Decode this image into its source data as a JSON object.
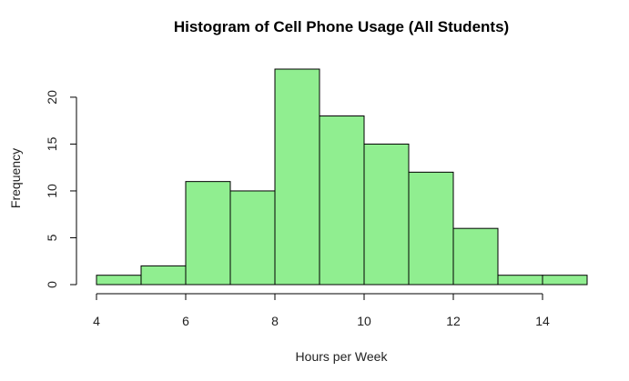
{
  "chart_data": {
    "type": "bar",
    "title": "Histogram of Cell Phone Usage (All Students)",
    "xlabel": "Hours per Week",
    "ylabel": "Frequency",
    "bins": [
      {
        "start": 4,
        "end": 5,
        "count": 1
      },
      {
        "start": 5,
        "end": 6,
        "count": 2
      },
      {
        "start": 6,
        "end": 7,
        "count": 11
      },
      {
        "start": 7,
        "end": 8,
        "count": 10
      },
      {
        "start": 8,
        "end": 9,
        "count": 23
      },
      {
        "start": 9,
        "end": 10,
        "count": 18
      },
      {
        "start": 10,
        "end": 11,
        "count": 15
      },
      {
        "start": 11,
        "end": 12,
        "count": 12
      },
      {
        "start": 12,
        "end": 13,
        "count": 6
      },
      {
        "start": 13,
        "end": 14,
        "count": 1
      },
      {
        "start": 14,
        "end": 15,
        "count": 1
      }
    ],
    "xlim": [
      4,
      15
    ],
    "ylim": [
      0,
      23
    ],
    "x_ticks": [
      4,
      6,
      8,
      10,
      12,
      14
    ],
    "y_ticks": [
      0,
      5,
      10,
      15,
      20
    ],
    "bar_color": "#90EE90",
    "bar_border_color": "#000000",
    "grid": false,
    "legend": "none"
  }
}
